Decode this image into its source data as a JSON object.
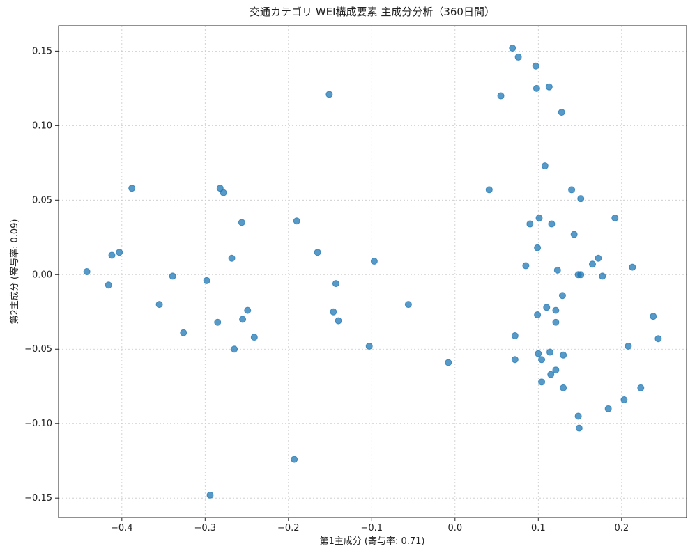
{
  "chart_data": {
    "type": "scatter",
    "title": "交通カテゴリ WEI構成要素 主成分分析（360日間）",
    "x_label": "第1主成分 (寄与率: 0.71)",
    "y_label": "第2主成分 (寄与率: 0.09)",
    "color": "#1f77b4",
    "grid": true,
    "xlim": [
      -0.476,
      0.278
    ],
    "ylim": [
      -0.163,
      0.167
    ],
    "xticks": [
      {
        "value": -0.4,
        "label": "−0.4"
      },
      {
        "value": -0.3,
        "label": "−0.3"
      },
      {
        "value": -0.2,
        "label": "−0.2"
      },
      {
        "value": -0.1,
        "label": "−0.1"
      },
      {
        "value": 0,
        "label": "0.0"
      },
      0.1,
      0.2
    ],
    "yticks": [
      {
        "value": -0.15,
        "label": "−0.15"
      },
      {
        "value": -0.1,
        "label": "−0.10"
      },
      {
        "value": -0.05,
        "label": "−0.05"
      },
      {
        "value": 0,
        "label": "0.00"
      },
      0.05,
      {
        "value": 0.1,
        "label": "0.10"
      },
      0.15
    ],
    "x": [
      -0.442,
      -0.416,
      -0.412,
      -0.403,
      -0.388,
      -0.355,
      -0.339,
      -0.326,
      -0.298,
      -0.294,
      -0.285,
      -0.282,
      -0.278,
      -0.268,
      -0.265,
      -0.256,
      -0.255,
      -0.249,
      -0.241,
      -0.193,
      -0.19,
      -0.165,
      -0.151,
      -0.146,
      -0.143,
      -0.14,
      -0.103,
      -0.097,
      -0.056,
      -0.008,
      0.041,
      0.055,
      0.069,
      0.072,
      0.072,
      0.076,
      0.085,
      0.09,
      0.097,
      0.098,
      0.099,
      0.099,
      0.1,
      0.101,
      0.104,
      0.104,
      0.108,
      0.11,
      0.113,
      0.114,
      0.115,
      0.116,
      0.121,
      0.121,
      0.121,
      0.123,
      0.128,
      0.129,
      0.13,
      0.13,
      0.14,
      0.143,
      0.148,
      0.148,
      0.149,
      0.151,
      0.151,
      0.165,
      0.172,
      0.177,
      0.184,
      0.192,
      0.203,
      0.208,
      0.213,
      0.223,
      0.238,
      0.244
    ],
    "values": [
      0.002,
      -0.007,
      0.013,
      0.015,
      0.058,
      -0.02,
      -0.001,
      -0.039,
      -0.004,
      -0.148,
      -0.032,
      0.058,
      0.055,
      0.011,
      -0.05,
      0.035,
      -0.03,
      -0.024,
      -0.042,
      -0.124,
      0.036,
      0.015,
      0.121,
      -0.025,
      -0.006,
      -0.031,
      -0.048,
      0.009,
      -0.02,
      -0.059,
      0.057,
      0.12,
      0.152,
      -0.041,
      -0.057,
      0.146,
      0.006,
      0.034,
      0.14,
      0.125,
      0.018,
      -0.027,
      -0.053,
      0.038,
      -0.057,
      -0.072,
      0.073,
      -0.022,
      0.126,
      -0.052,
      -0.067,
      0.034,
      -0.024,
      -0.032,
      -0.064,
      0.003,
      0.109,
      -0.014,
      -0.054,
      -0.076,
      0.057,
      0.027,
      0,
      -0.095,
      -0.103,
      0.051,
      0,
      0.007,
      0.011,
      -0.001,
      -0.09,
      0.038,
      -0.084,
      -0.048,
      0.005,
      -0.076,
      -0.028,
      -0.043
    ]
  }
}
